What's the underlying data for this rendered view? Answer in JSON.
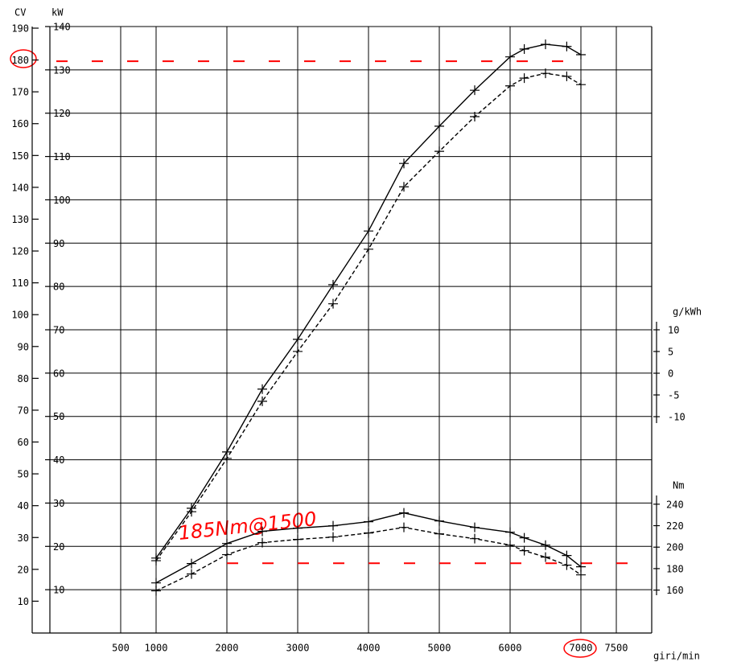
{
  "chart_data": {
    "type": "line",
    "x_label": "giri/min",
    "y_label": "kW",
    "cv_label": "CV",
    "y2_label": "g/kWh",
    "y3_label": "Nm",
    "annotation": "185Nm@1500",
    "xlim": [
      -500,
      8000
    ],
    "xticks": [
      500,
      1000,
      2000,
      3000,
      4000,
      5000,
      6000,
      7000,
      7500
    ],
    "ylim": [
      0,
      140
    ],
    "yticks": [
      10,
      20,
      30,
      40,
      50,
      60,
      70,
      80,
      90,
      100,
      110,
      120,
      130,
      140
    ],
    "cvlim": [
      0,
      190
    ],
    "cvticks": [
      10,
      20,
      30,
      40,
      50,
      60,
      70,
      80,
      90,
      100,
      110,
      120,
      130,
      140,
      150,
      160,
      170,
      180,
      190
    ],
    "y2lim": [
      -10,
      10
    ],
    "y2ticks": [
      10,
      5,
      0,
      -5,
      -10
    ],
    "y3lim": [
      120,
      250
    ],
    "y3ticks": [
      240,
      220,
      200,
      180,
      160
    ],
    "grid": true,
    "x": [
      1000,
      1500,
      2000,
      2500,
      3000,
      3500,
      4000,
      4500,
      5000,
      5500,
      6000,
      6200,
      6500,
      6800,
      7000
    ],
    "series": [
      {
        "axis": "y",
        "color": "#000000",
        "dashed": false,
        "values": [
          17.3,
          28.8,
          41.8,
          56.3,
          67.8,
          80.4,
          92.8,
          108.4,
          117,
          125.3,
          133,
          134.8,
          135.9,
          135.4,
          133.5
        ]
      },
      {
        "axis": "y",
        "color": "#000000",
        "dashed": true,
        "values": [
          16.7,
          28,
          40.3,
          53.5,
          65,
          76,
          88.6,
          103,
          111.2,
          119.2,
          126.3,
          128.1,
          129.2,
          128.5,
          126.6
        ]
      },
      {
        "axis": "y3",
        "color": "#000000",
        "dashed": false,
        "values": [
          166.7,
          184.7,
          203.4,
          214.7,
          217.7,
          219.9,
          223.7,
          231.9,
          224.4,
          218.4,
          213.9,
          208.7,
          201.9,
          192.2,
          181.7
        ]
      },
      {
        "axis": "y3",
        "color": "#000000",
        "dashed": true,
        "values": [
          159.3,
          175,
          193,
          204.2,
          207.2,
          209.4,
          213.2,
          218.4,
          212.4,
          207.9,
          201.9,
          196.7,
          190.7,
          183.2,
          174.2
        ]
      }
    ],
    "ref_lines": [
      {
        "axis": "y",
        "value": 132,
        "color": "#ff0000"
      },
      {
        "axis": "y3",
        "value": 185,
        "color": "#ff0000"
      }
    ]
  }
}
